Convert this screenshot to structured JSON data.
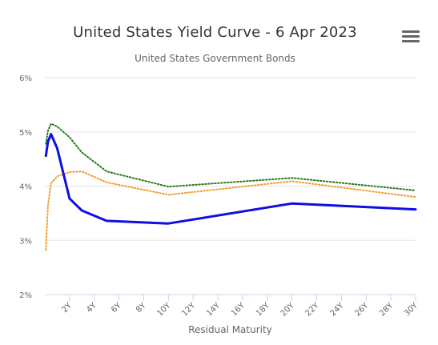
{
  "chart_data": {
    "type": "line",
    "title": "United States Yield Curve - 6 Apr 2023",
    "subtitle": "United States Government Bonds",
    "xlabel": "Residual Maturity",
    "ylabel": "",
    "x_unit": "years",
    "xlim": [
      0,
      30
    ],
    "ylim": [
      2,
      6
    ],
    "x_ticks": [
      {
        "value": 2,
        "label": "2Y"
      },
      {
        "value": 4,
        "label": "4Y"
      },
      {
        "value": 6,
        "label": "6Y"
      },
      {
        "value": 8,
        "label": "8Y"
      },
      {
        "value": 10,
        "label": "10Y"
      },
      {
        "value": 12,
        "label": "12Y"
      },
      {
        "value": 14,
        "label": "14Y"
      },
      {
        "value": 16,
        "label": "16Y"
      },
      {
        "value": 18,
        "label": "18Y"
      },
      {
        "value": 20,
        "label": "20Y"
      },
      {
        "value": 22,
        "label": "22Y"
      },
      {
        "value": 24,
        "label": "24Y"
      },
      {
        "value": 26,
        "label": "26Y"
      },
      {
        "value": 28,
        "label": "28Y"
      },
      {
        "value": 30,
        "label": "30Y"
      }
    ],
    "y_ticks": [
      {
        "value": 2,
        "label": "2%"
      },
      {
        "value": 3,
        "label": "3%"
      },
      {
        "value": 4,
        "label": "4%"
      },
      {
        "value": 5,
        "label": "5%"
      },
      {
        "value": 6,
        "label": "6%"
      }
    ],
    "grid": "horizontal",
    "legend": "none",
    "series": [
      {
        "color": "#2a7a1e",
        "dash": "dotted",
        "x": [
          0.083,
          0.25,
          0.5,
          1,
          2,
          3,
          5,
          10,
          20,
          30
        ],
        "y": [
          4.78,
          5.02,
          5.15,
          5.1,
          4.9,
          4.62,
          4.27,
          3.99,
          4.15,
          3.92
        ]
      },
      {
        "color": "#f0a030",
        "dash": "dotted",
        "x": [
          0.083,
          0.25,
          0.5,
          1,
          2,
          3,
          5,
          10,
          20,
          30
        ],
        "y": [
          2.82,
          3.65,
          4.05,
          4.18,
          4.26,
          4.27,
          4.07,
          3.84,
          4.09,
          3.8
        ]
      },
      {
        "color": "#0f0fe0",
        "dash": "solid",
        "x": [
          0.083,
          0.25,
          0.5,
          1,
          2,
          3,
          5,
          10,
          20,
          30
        ],
        "y": [
          4.56,
          4.82,
          4.96,
          4.7,
          3.77,
          3.55,
          3.36,
          3.31,
          3.68,
          3.57
        ]
      }
    ]
  },
  "menu": {
    "icon": "hamburger-menu-icon"
  }
}
